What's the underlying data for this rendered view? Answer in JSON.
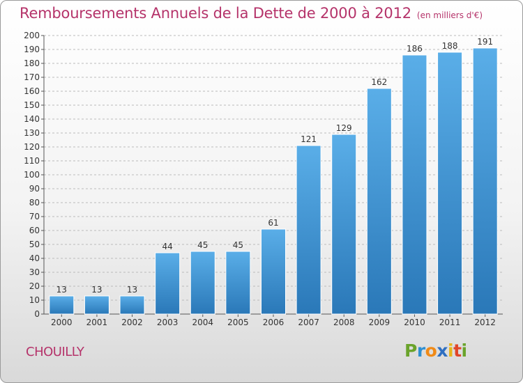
{
  "chart_data": {
    "type": "bar",
    "title": "Remboursements Annuels de la Dette de 2000 à 2012",
    "subtitle": "(en milliers d'€)",
    "categories": [
      "2000",
      "2001",
      "2002",
      "2003",
      "2004",
      "2005",
      "2006",
      "2007",
      "2008",
      "2009",
      "2010",
      "2011",
      "2012"
    ],
    "values": [
      13,
      13,
      13,
      44,
      45,
      45,
      61,
      121,
      129,
      162,
      186,
      188,
      191
    ],
    "ylim": [
      0,
      200
    ],
    "ytick_step": 10,
    "grid": true,
    "show_data_labels": true,
    "colors": {
      "bar_top": "#5aaee8",
      "bar_bottom": "#2a78b8",
      "title": "#b5336a",
      "grid": "#bbbbbb"
    }
  },
  "footer": {
    "location": "CHOUILLY",
    "logo_letters": [
      {
        "char": "P",
        "color": "#6aa32b"
      },
      {
        "char": "r",
        "color": "#2f8fd1"
      },
      {
        "char": "o",
        "color": "#f08a17"
      },
      {
        "char": "x",
        "color": "#2f6fc1"
      },
      {
        "char": "i",
        "color": "#e8b51a"
      },
      {
        "char": "t",
        "color": "#e0462a"
      },
      {
        "char": "i",
        "color": "#6aa32b"
      }
    ]
  }
}
